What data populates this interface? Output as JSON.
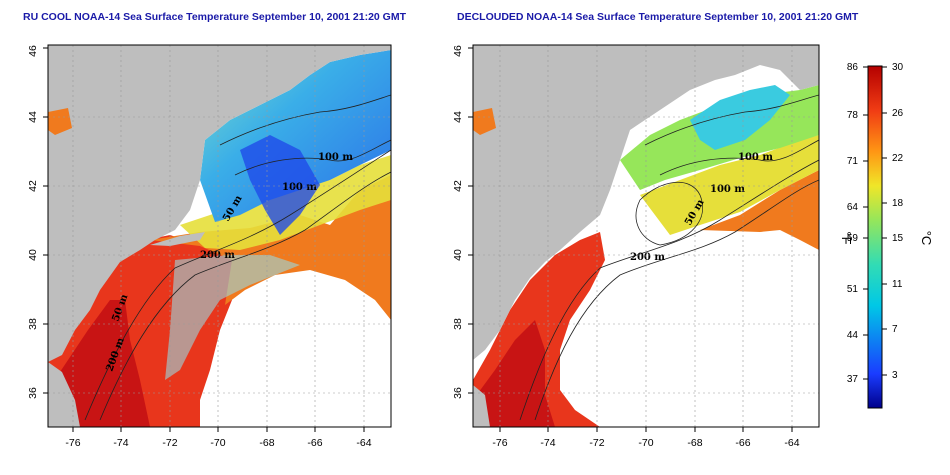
{
  "panels": [
    {
      "title": "RU COOL NOAA-14 Sea Surface Temperature September 10, 2001 21:20 GMT",
      "contour_labels": [
        "100 m",
        "100 m",
        "50 m",
        "200 m",
        "50 m",
        "200 m"
      ]
    },
    {
      "title": "DECLOUDED NOAA-14 Sea Surface Temperature September 10, 2001 21:20 GMT",
      "contour_labels": [
        "100 m",
        "100 m",
        "50 m",
        "200 m"
      ]
    }
  ],
  "axes": {
    "x_ticks": [
      "-76",
      "-74",
      "-72",
      "-70",
      "-68",
      "-66",
      "-64"
    ],
    "y_ticks": [
      "36",
      "38",
      "40",
      "42",
      "44",
      "46"
    ]
  },
  "colorbar": {
    "fahrenheit_unit": "°F",
    "celsius_unit": "°C",
    "fahrenheit_ticks": [
      "86",
      "78",
      "71",
      "64",
      "59",
      "51",
      "44",
      "37"
    ],
    "celsius_ticks": [
      "30",
      "26",
      "22",
      "18",
      "15",
      "11",
      "7",
      "3"
    ]
  },
  "colors": {
    "land": "#bebebe",
    "no_data": "#ffffff",
    "title": "#1a1aa8",
    "scale": [
      "#00008b",
      "#1a3cff",
      "#00c8e6",
      "#32dcb4",
      "#96e65a",
      "#f0e628",
      "#ff9614",
      "#f03c14",
      "#b40000"
    ]
  }
}
